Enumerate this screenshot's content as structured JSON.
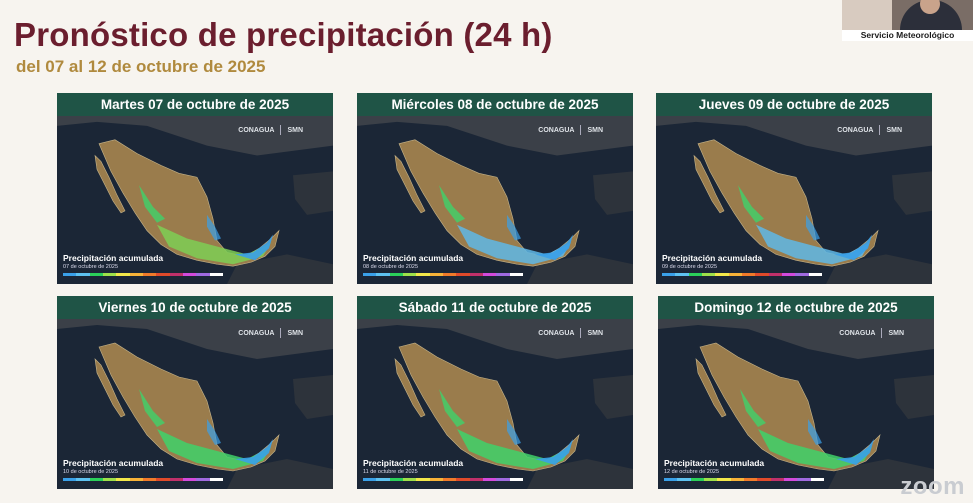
{
  "title": "Pronóstico de precipitación (24 h)",
  "subtitle": "del 07 al 12 de octubre de 2025",
  "webcam_label": "Servicio Meteorológico Nacional",
  "brand_logos": [
    "CONAGUA",
    "SMN"
  ],
  "legend_title": "Precipitación acumulada",
  "legend_colors": [
    "#3aa0e8",
    "#5ec2f0",
    "#2bd05a",
    "#9fe04a",
    "#f3e84a",
    "#f7b238",
    "#f07a2a",
    "#e04a2a",
    "#c0306a",
    "#d24adc",
    "#a06ae0",
    "#ffffff"
  ],
  "panels": [
    {
      "day": "Martes 07 de octubre de 2025",
      "date": "07 de octubre de 2025"
    },
    {
      "day": "Miércoles 08 de octubre de 2025",
      "date": "08 de octubre de 2025"
    },
    {
      "day": "Jueves 09 de octubre de 2025",
      "date": "09 de octubre de 2025"
    },
    {
      "day": "Viernes 10 de octubre de 2025",
      "date": "10 de octubre de 2025"
    },
    {
      "day": "Sábado 11 de octubre de 2025",
      "date": "11 de octubre de 2025"
    },
    {
      "day": "Domingo 12 de octubre de 2025",
      "date": "12 de octubre de 2025"
    }
  ],
  "zoom_watermark": "zoom"
}
